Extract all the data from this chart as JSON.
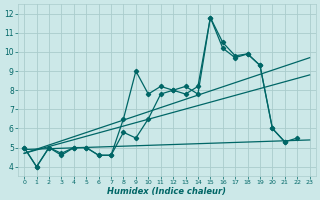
{
  "xlabel": "Humidex (Indice chaleur)",
  "bg_color": "#cce8e8",
  "grid_color": "#aacccc",
  "line_color": "#006666",
  "xlim": [
    -0.5,
    23.5
  ],
  "ylim": [
    3.5,
    12.5
  ],
  "xticks": [
    0,
    1,
    2,
    3,
    4,
    5,
    6,
    7,
    8,
    9,
    10,
    11,
    12,
    13,
    14,
    15,
    16,
    17,
    18,
    19,
    20,
    21,
    22,
    23
  ],
  "yticks": [
    4,
    5,
    6,
    7,
    8,
    9,
    10,
    11,
    12
  ],
  "series1_x": [
    0,
    1,
    2,
    3,
    4,
    5,
    6,
    7,
    8,
    9,
    10,
    11,
    12,
    13,
    14,
    15,
    16,
    17,
    18,
    19,
    20,
    21,
    22
  ],
  "series1_y": [
    5.0,
    4.0,
    5.0,
    4.6,
    5.0,
    5.0,
    4.6,
    4.6,
    5.8,
    5.5,
    6.5,
    7.8,
    8.0,
    8.2,
    7.8,
    11.8,
    10.2,
    9.7,
    9.9,
    9.3,
    6.0,
    5.3,
    5.5
  ],
  "series2_x": [
    0,
    1,
    2,
    3,
    4,
    5,
    6,
    7,
    8,
    9,
    10,
    11,
    12,
    13,
    14,
    15,
    16,
    17,
    18,
    19,
    20,
    21
  ],
  "series2_y": [
    5.0,
    4.0,
    5.0,
    4.7,
    5.0,
    5.0,
    4.6,
    4.6,
    6.5,
    9.0,
    7.8,
    8.2,
    8.0,
    7.8,
    8.2,
    11.8,
    10.5,
    9.8,
    9.9,
    9.3,
    6.0,
    5.3
  ],
  "trend1_x": [
    0,
    23
  ],
  "trend1_y": [
    4.7,
    8.8
  ],
  "trend2_x": [
    0,
    23
  ],
  "trend2_y": [
    4.7,
    9.7
  ],
  "bottom_line_x": [
    0,
    23
  ],
  "bottom_line_y": [
    4.9,
    5.4
  ]
}
